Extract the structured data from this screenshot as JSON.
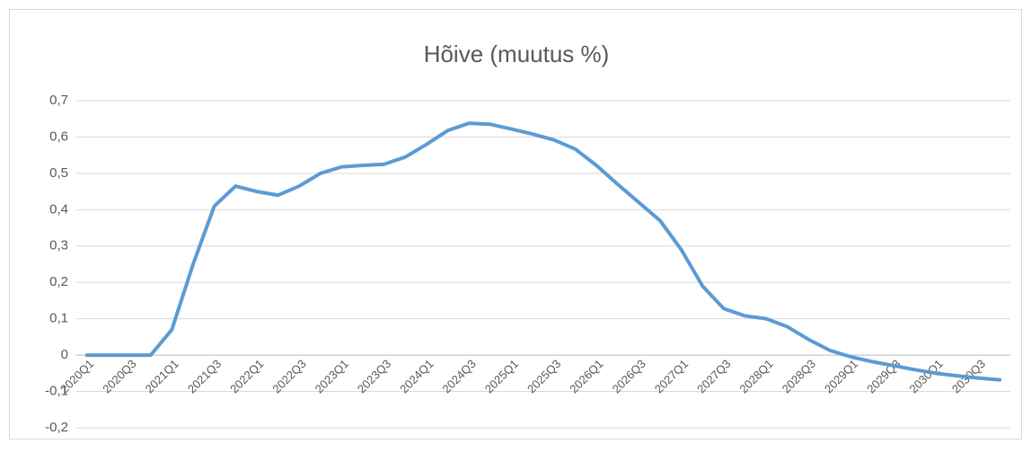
{
  "chart_data": {
    "type": "line",
    "title": "Hõive (muutus %)",
    "categories": [
      "2020Q1",
      null,
      "2020Q3",
      null,
      "2021Q1",
      null,
      "2021Q3",
      null,
      "2022Q1",
      null,
      "2022Q3",
      null,
      "2023Q1",
      null,
      "2023Q3",
      null,
      "2024Q1",
      null,
      "2024Q3",
      null,
      "2025Q1",
      null,
      "2025Q3",
      null,
      "2026Q1",
      null,
      "2026Q3",
      null,
      "2027Q1",
      null,
      "2027Q3",
      null,
      "2028Q1",
      null,
      "2028Q3",
      null,
      "2029Q1",
      null,
      "2029Q3",
      null,
      "2030Q1",
      null,
      "2030Q3",
      null
    ],
    "series": [
      {
        "color": "#5b9bd5",
        "values": [
          0,
          0,
          0,
          0,
          0.07,
          0.25,
          0.41,
          0.465,
          0.45,
          0.44,
          0.465,
          0.5,
          0.518,
          0.522,
          0.525,
          0.545,
          0.58,
          0.618,
          0.638,
          0.635,
          0.622,
          0.608,
          0.592,
          0.567,
          0.522,
          0.47,
          0.42,
          0.37,
          0.29,
          0.19,
          0.128,
          0.108,
          0.1,
          0.078,
          0.043,
          0.013,
          -0.005,
          -0.018,
          -0.029,
          -0.04,
          -0.05,
          -0.057,
          -0.063,
          -0.068
        ]
      }
    ],
    "ylim": [
      -0.2,
      0.7
    ],
    "yticks": [
      {
        "value": -0.2,
        "label": "-0,2"
      },
      {
        "value": -0.1,
        "label": "-0,1"
      },
      0,
      {
        "value": 0.1,
        "label": "0,1"
      },
      {
        "value": 0.2,
        "label": "0,2"
      },
      {
        "value": 0.3,
        "label": "0,3"
      },
      {
        "value": 0.4,
        "label": "0,4"
      },
      {
        "value": 0.5,
        "label": "0,5"
      },
      {
        "value": 0.6,
        "label": "0,6"
      },
      {
        "value": 0.7,
        "label": "0,7"
      }
    ],
    "grid": true
  }
}
